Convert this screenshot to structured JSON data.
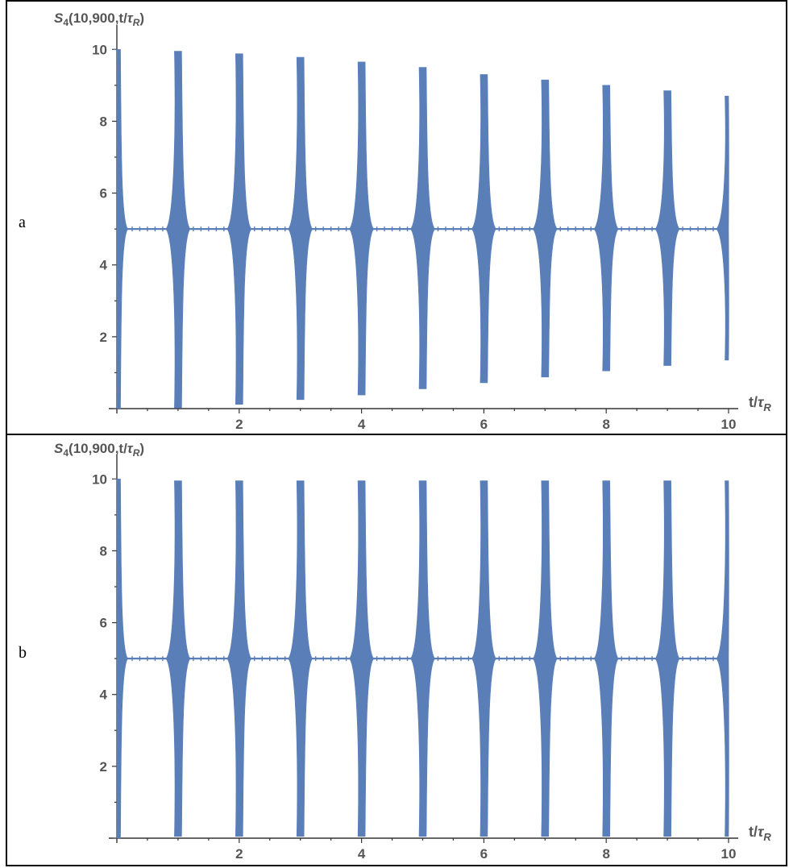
{
  "colors": {
    "series": "#5a7fb8",
    "axis": "#333333",
    "text": "#555555",
    "border": "#000000"
  },
  "chart_data": [
    {
      "type": "area",
      "panel_label": "a",
      "ylabel": {
        "main": "S",
        "sub": "4",
        "args": "(10,900,t/",
        "tau": "τ",
        "tau_sub": "R",
        "close": ")"
      },
      "xlabel": {
        "main": "t/",
        "tau": "τ",
        "tau_sub": "R"
      },
      "xlim": [
        0,
        10
      ],
      "ylim": [
        0,
        10.5
      ],
      "xticks": [
        2,
        4,
        6,
        8,
        10
      ],
      "yticks": [
        2,
        4,
        6,
        8,
        10
      ],
      "baseline": 5,
      "revivals": [
        {
          "t": 0,
          "max": 10.0,
          "min": 0.0
        },
        {
          "t": 1,
          "max": 9.95,
          "min": 0.02
        },
        {
          "t": 2,
          "max": 9.88,
          "min": 0.12
        },
        {
          "t": 3,
          "max": 9.78,
          "min": 0.25
        },
        {
          "t": 4,
          "max": 9.65,
          "min": 0.38
        },
        {
          "t": 5,
          "max": 9.5,
          "min": 0.55
        },
        {
          "t": 6,
          "max": 9.3,
          "min": 0.72
        },
        {
          "t": 7,
          "max": 9.15,
          "min": 0.88
        },
        {
          "t": 8,
          "max": 9.0,
          "min": 1.05
        },
        {
          "t": 9,
          "max": 8.85,
          "min": 1.2
        },
        {
          "t": 10,
          "max": 8.7,
          "min": 1.35
        }
      ]
    },
    {
      "type": "area",
      "panel_label": "b",
      "ylabel": {
        "main": "S",
        "sub": "4",
        "args": "(10,900,t/",
        "tau": "τ",
        "tau_sub": "R",
        "close": ")"
      },
      "xlabel": {
        "main": "t/",
        "tau": "τ",
        "tau_sub": "R"
      },
      "xlim": [
        0,
        10
      ],
      "ylim": [
        0,
        10.5
      ],
      "xticks": [
        2,
        4,
        6,
        8,
        10
      ],
      "yticks": [
        2,
        4,
        6,
        8,
        10
      ],
      "baseline": 5,
      "revivals": [
        {
          "t": 0,
          "max": 10.0,
          "min": 0.0
        },
        {
          "t": 1,
          "max": 9.95,
          "min": 0.05
        },
        {
          "t": 2,
          "max": 9.95,
          "min": 0.05
        },
        {
          "t": 3,
          "max": 9.95,
          "min": 0.05
        },
        {
          "t": 4,
          "max": 9.95,
          "min": 0.05
        },
        {
          "t": 5,
          "max": 9.95,
          "min": 0.05
        },
        {
          "t": 6,
          "max": 9.95,
          "min": 0.05
        },
        {
          "t": 7,
          "max": 9.95,
          "min": 0.05
        },
        {
          "t": 8,
          "max": 9.95,
          "min": 0.05
        },
        {
          "t": 9,
          "max": 9.95,
          "min": 0.05
        },
        {
          "t": 10,
          "max": 9.95,
          "min": 0.05
        }
      ]
    }
  ]
}
